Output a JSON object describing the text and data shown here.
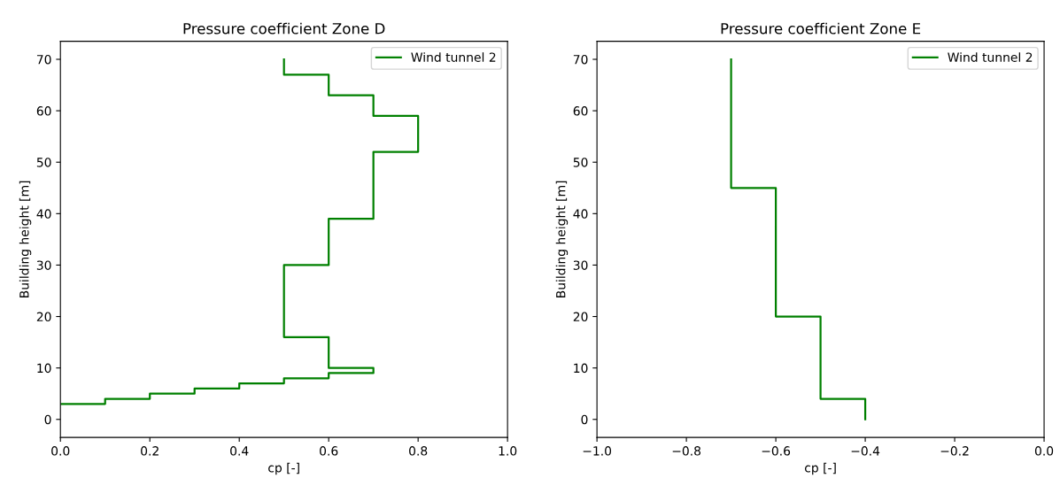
{
  "chart_data": [
    {
      "type": "line",
      "title": "Pressure coefficient Zone D",
      "xlabel": "cp [-]",
      "ylabel": "Building height [m]",
      "series": [
        {
          "name": "Wind tunnel 2",
          "color": "#008000",
          "x": [
            0.5,
            0.5,
            0.6,
            0.6,
            0.7,
            0.7,
            0.8,
            0.8,
            0.7,
            0.7,
            0.6,
            0.6,
            0.5,
            0.5,
            0.6,
            0.6,
            0.7,
            0.7,
            0.6,
            0.6,
            0.5,
            0.5,
            0.4,
            0.4,
            0.3,
            0.3,
            0.2,
            0.2,
            0.1,
            0.1,
            0.0
          ],
          "values": [
            70,
            67,
            67,
            63,
            63,
            59,
            59,
            52,
            52,
            39,
            39,
            30,
            30,
            16,
            16,
            10,
            10,
            9,
            9,
            8,
            8,
            7,
            7,
            6,
            6,
            5,
            5,
            4,
            4,
            3,
            3
          ]
        }
      ],
      "xlim": [
        0,
        1
      ],
      "xticks": [
        {
          "value": 0,
          "label": "0.0"
        },
        {
          "value": 0.2,
          "label": "0.2"
        },
        {
          "value": 0.4,
          "label": "0.4"
        },
        {
          "value": 0.6,
          "label": "0.6"
        },
        {
          "value": 0.8,
          "label": "0.8"
        },
        {
          "value": 1,
          "label": "1.0"
        }
      ],
      "ylim": [
        -3.5,
        73.5
      ],
      "yticks": [
        0,
        10,
        20,
        30,
        40,
        50,
        60,
        70
      ],
      "legend": "top right",
      "grid": false,
      "line_style": "solid",
      "marker": "none"
    },
    {
      "type": "line",
      "title": "Pressure coefficient Zone E",
      "xlabel": "cp [-]",
      "ylabel": "Building height [m]",
      "series": [
        {
          "name": "Wind tunnel 2",
          "color": "#008000",
          "x": [
            -0.7,
            -0.7,
            -0.6,
            -0.6,
            -0.5,
            -0.5,
            -0.4,
            -0.4
          ],
          "values": [
            70,
            45,
            45,
            20,
            20,
            4,
            4,
            0
          ]
        }
      ],
      "xlim": [
        -1,
        0
      ],
      "xticks": [
        {
          "value": -1,
          "label": "−1.0"
        },
        {
          "value": -0.8,
          "label": "−0.8"
        },
        {
          "value": -0.6,
          "label": "−0.6"
        },
        {
          "value": -0.4,
          "label": "−0.4"
        },
        {
          "value": -0.2,
          "label": "−0.2"
        },
        {
          "value": 0,
          "label": "0.0"
        }
      ],
      "ylim": [
        -3.5,
        73.5
      ],
      "yticks": [
        0,
        10,
        20,
        30,
        40,
        50,
        60,
        70
      ],
      "legend": "top right",
      "grid": false,
      "line_style": "solid",
      "marker": "none"
    }
  ]
}
